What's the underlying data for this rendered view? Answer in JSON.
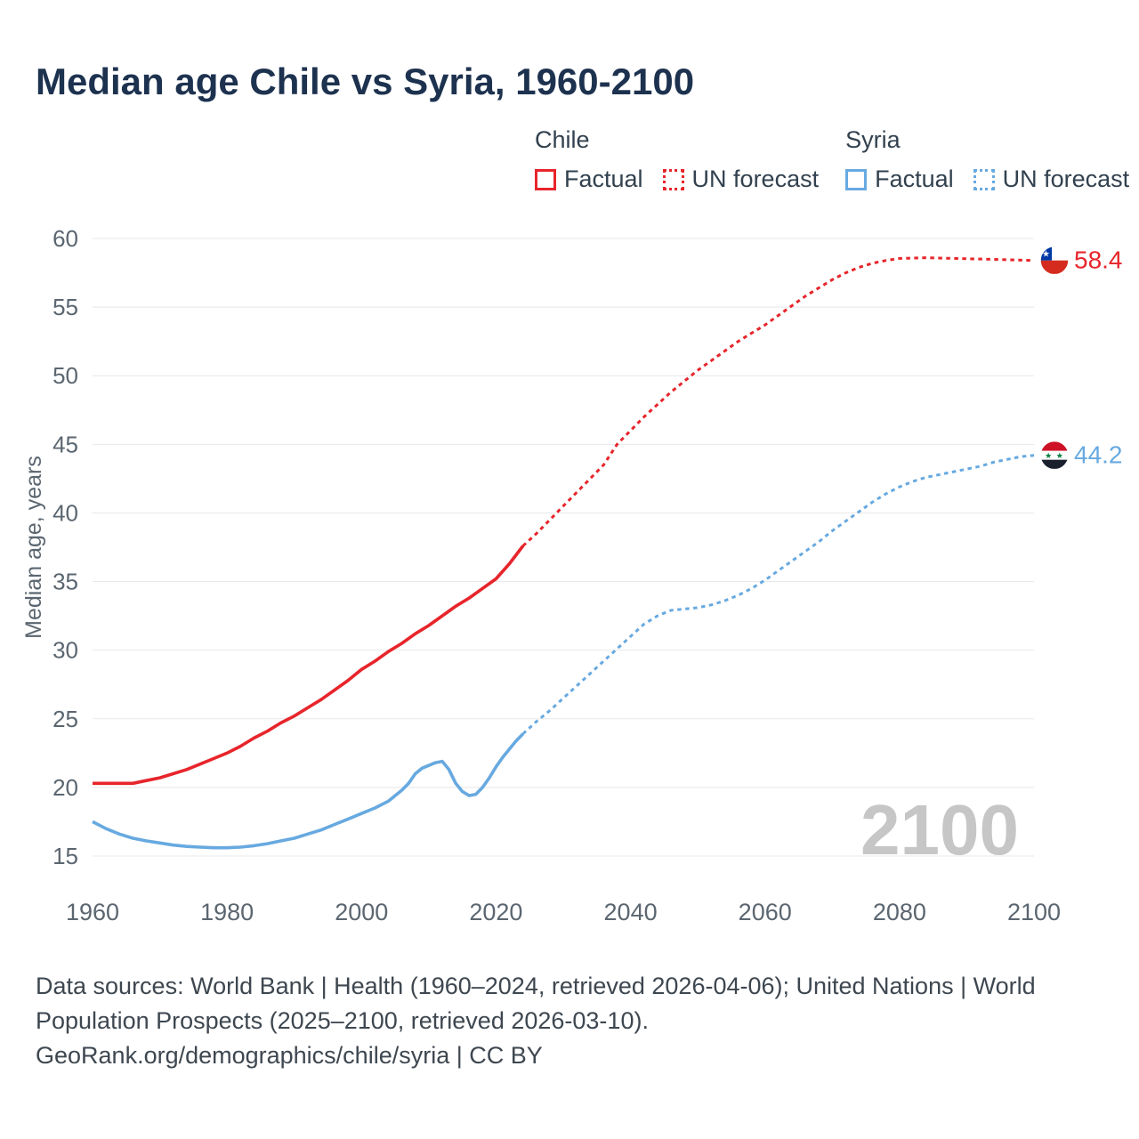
{
  "title": "Median age Chile vs Syria, 1960-2100",
  "legend": {
    "groups": [
      {
        "country": "Chile",
        "items": [
          {
            "label": "Factual"
          },
          {
            "label": "UN forecast"
          }
        ]
      },
      {
        "country": "Syria",
        "items": [
          {
            "label": "Factual"
          },
          {
            "label": "UN forecast"
          }
        ]
      }
    ]
  },
  "colors": {
    "chile": "#e7252b",
    "syria": "#67a9e0",
    "title": "#1d324f",
    "legend_text": "#32414f",
    "axis_text": "#5b6670",
    "grid": "#e8e8e8",
    "watermark": "#c6c6c6",
    "footer_text": "#3e4750"
  },
  "chart_data": {
    "type": "line",
    "title": "Median age Chile vs Syria, 1960-2100",
    "xlabel": "",
    "ylabel": "Median age, years",
    "xrange": [
      1960,
      2100
    ],
    "yrange": [
      15,
      60
    ],
    "xticks": [
      1960,
      1980,
      2000,
      2020,
      2040,
      2060,
      2080,
      2100
    ],
    "yticks": [
      15,
      20,
      25,
      30,
      35,
      40,
      45,
      50,
      55,
      60
    ],
    "grid": "horizontal",
    "legend_position": "top-right",
    "watermark": "2100",
    "series": [
      {
        "id": "chile-factual",
        "name": "Chile Factual",
        "color": "#e7252b",
        "dash": "solid",
        "points": [
          [
            1960,
            20.3
          ],
          [
            1962,
            20.3
          ],
          [
            1964,
            20.3
          ],
          [
            1966,
            20.3
          ],
          [
            1968,
            20.5
          ],
          [
            1970,
            20.7
          ],
          [
            1972,
            21.0
          ],
          [
            1974,
            21.3
          ],
          [
            1976,
            21.7
          ],
          [
            1978,
            22.1
          ],
          [
            1980,
            22.5
          ],
          [
            1982,
            23.0
          ],
          [
            1984,
            23.6
          ],
          [
            1986,
            24.1
          ],
          [
            1988,
            24.7
          ],
          [
            1990,
            25.2
          ],
          [
            1992,
            25.8
          ],
          [
            1994,
            26.4
          ],
          [
            1996,
            27.1
          ],
          [
            1998,
            27.8
          ],
          [
            2000,
            28.6
          ],
          [
            2002,
            29.2
          ],
          [
            2004,
            29.9
          ],
          [
            2006,
            30.5
          ],
          [
            2008,
            31.2
          ],
          [
            2010,
            31.8
          ],
          [
            2012,
            32.5
          ],
          [
            2014,
            33.2
          ],
          [
            2016,
            33.8
          ],
          [
            2018,
            34.5
          ],
          [
            2020,
            35.2
          ],
          [
            2022,
            36.3
          ],
          [
            2024,
            37.6
          ]
        ]
      },
      {
        "id": "chile-forecast",
        "name": "Chile UN forecast",
        "color": "#e7252b",
        "dash": "dashed",
        "points": [
          [
            2024,
            37.6
          ],
          [
            2026,
            38.5
          ],
          [
            2028,
            39.5
          ],
          [
            2030,
            40.5
          ],
          [
            2032,
            41.5
          ],
          [
            2034,
            42.5
          ],
          [
            2036,
            43.5
          ],
          [
            2038,
            45.0
          ],
          [
            2040,
            46.0
          ],
          [
            2042,
            47.0
          ],
          [
            2044,
            47.9
          ],
          [
            2046,
            48.8
          ],
          [
            2048,
            49.6
          ],
          [
            2050,
            50.4
          ],
          [
            2052,
            51.1
          ],
          [
            2054,
            51.8
          ],
          [
            2056,
            52.5
          ],
          [
            2058,
            53.1
          ],
          [
            2060,
            53.7
          ],
          [
            2062,
            54.4
          ],
          [
            2064,
            55.1
          ],
          [
            2066,
            55.8
          ],
          [
            2068,
            56.4
          ],
          [
            2070,
            57.0
          ],
          [
            2072,
            57.5
          ],
          [
            2074,
            57.9
          ],
          [
            2076,
            58.2
          ],
          [
            2078,
            58.4
          ],
          [
            2080,
            58.55
          ],
          [
            2084,
            58.6
          ],
          [
            2088,
            58.55
          ],
          [
            2092,
            58.5
          ],
          [
            2096,
            58.45
          ],
          [
            2100,
            58.4
          ]
        ]
      },
      {
        "id": "syria-factual",
        "name": "Syria Factual",
        "color": "#67a9e0",
        "dash": "solid",
        "points": [
          [
            1960,
            17.5
          ],
          [
            1962,
            17.0
          ],
          [
            1964,
            16.6
          ],
          [
            1966,
            16.3
          ],
          [
            1968,
            16.1
          ],
          [
            1970,
            15.95
          ],
          [
            1972,
            15.8
          ],
          [
            1974,
            15.7
          ],
          [
            1976,
            15.65
          ],
          [
            1978,
            15.6
          ],
          [
            1980,
            15.6
          ],
          [
            1982,
            15.65
          ],
          [
            1984,
            15.75
          ],
          [
            1986,
            15.9
          ],
          [
            1988,
            16.1
          ],
          [
            1990,
            16.3
          ],
          [
            1992,
            16.6
          ],
          [
            1994,
            16.9
          ],
          [
            1996,
            17.3
          ],
          [
            1998,
            17.7
          ],
          [
            2000,
            18.1
          ],
          [
            2002,
            18.5
          ],
          [
            2004,
            19.0
          ],
          [
            2006,
            19.8
          ],
          [
            2007,
            20.3
          ],
          [
            2008,
            21.0
          ],
          [
            2009,
            21.4
          ],
          [
            2010,
            21.6
          ],
          [
            2011,
            21.8
          ],
          [
            2012,
            21.9
          ],
          [
            2013,
            21.3
          ],
          [
            2014,
            20.3
          ],
          [
            2015,
            19.7
          ],
          [
            2016,
            19.4
          ],
          [
            2017,
            19.5
          ],
          [
            2018,
            20.0
          ],
          [
            2019,
            20.7
          ],
          [
            2020,
            21.5
          ],
          [
            2021,
            22.2
          ],
          [
            2022,
            22.8
          ],
          [
            2023,
            23.4
          ],
          [
            2024,
            23.9
          ]
        ]
      },
      {
        "id": "syria-forecast",
        "name": "Syria UN forecast",
        "color": "#67a9e0",
        "dash": "dashed",
        "points": [
          [
            2024,
            23.9
          ],
          [
            2026,
            24.8
          ],
          [
            2028,
            25.6
          ],
          [
            2030,
            26.5
          ],
          [
            2032,
            27.4
          ],
          [
            2034,
            28.3
          ],
          [
            2036,
            29.2
          ],
          [
            2038,
            30.1
          ],
          [
            2040,
            31.0
          ],
          [
            2042,
            31.9
          ],
          [
            2044,
            32.5
          ],
          [
            2046,
            32.9
          ],
          [
            2048,
            33.0
          ],
          [
            2050,
            33.1
          ],
          [
            2052,
            33.3
          ],
          [
            2054,
            33.6
          ],
          [
            2056,
            34.0
          ],
          [
            2058,
            34.5
          ],
          [
            2060,
            35.1
          ],
          [
            2062,
            35.8
          ],
          [
            2064,
            36.5
          ],
          [
            2066,
            37.2
          ],
          [
            2068,
            37.9
          ],
          [
            2070,
            38.7
          ],
          [
            2072,
            39.4
          ],
          [
            2074,
            40.1
          ],
          [
            2076,
            40.8
          ],
          [
            2078,
            41.4
          ],
          [
            2080,
            41.9
          ],
          [
            2082,
            42.3
          ],
          [
            2084,
            42.6
          ],
          [
            2086,
            42.8
          ],
          [
            2088,
            43.0
          ],
          [
            2090,
            43.2
          ],
          [
            2092,
            43.4
          ],
          [
            2094,
            43.7
          ],
          [
            2096,
            43.9
          ],
          [
            2098,
            44.1
          ],
          [
            2100,
            44.2
          ]
        ]
      }
    ],
    "end_labels": [
      {
        "flag": "chile",
        "label": "58.4",
        "value": 58.4,
        "color": "#e7252b"
      },
      {
        "flag": "syria",
        "label": "44.2",
        "value": 44.2,
        "color": "#67a9e0"
      }
    ]
  },
  "footer": {
    "line1": "Data sources: World Bank | Health (1960–2024, retrieved 2026-04-06); United Nations | World",
    "line2": "Population Prospects (2025–2100, retrieved 2026-03-10).",
    "line3": "GeoRank.org/demographics/chile/syria | CC BY"
  }
}
